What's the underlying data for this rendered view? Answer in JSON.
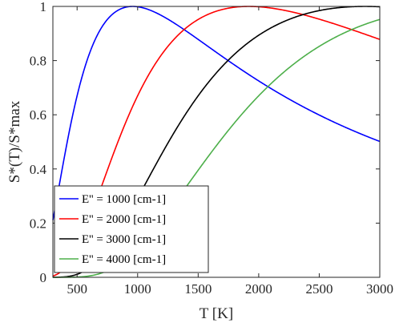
{
  "chart_data": {
    "type": "line",
    "xlabel": "T [K]",
    "ylabel": "S*(T)/S*max",
    "xlim": [
      300,
      3000
    ],
    "ylim": [
      0,
      1
    ],
    "xticks": [
      500,
      1000,
      1500,
      2000,
      2500,
      3000
    ],
    "yticks": [
      0,
      0.2,
      0.4,
      0.6,
      0.8,
      1
    ],
    "ytick_labels": [
      "0",
      "0.2",
      "0.4",
      "0.6",
      "0.8",
      "1"
    ],
    "grid": false,
    "legend_position": "bottom-left",
    "series": [
      {
        "name": "E'' = 1000 [cm-1]",
        "E": 1000,
        "color": "#0000ff"
      },
      {
        "name": "E'' = 2000 [cm-1]",
        "E": 2000,
        "color": "#ff0000"
      },
      {
        "name": "E'' = 3000 [cm-1]",
        "E": 3000,
        "color": "#000000"
      },
      {
        "name": "E'' = 4000 [cm-1]",
        "E": 4000,
        "color": "#4daf4a"
      }
    ]
  }
}
